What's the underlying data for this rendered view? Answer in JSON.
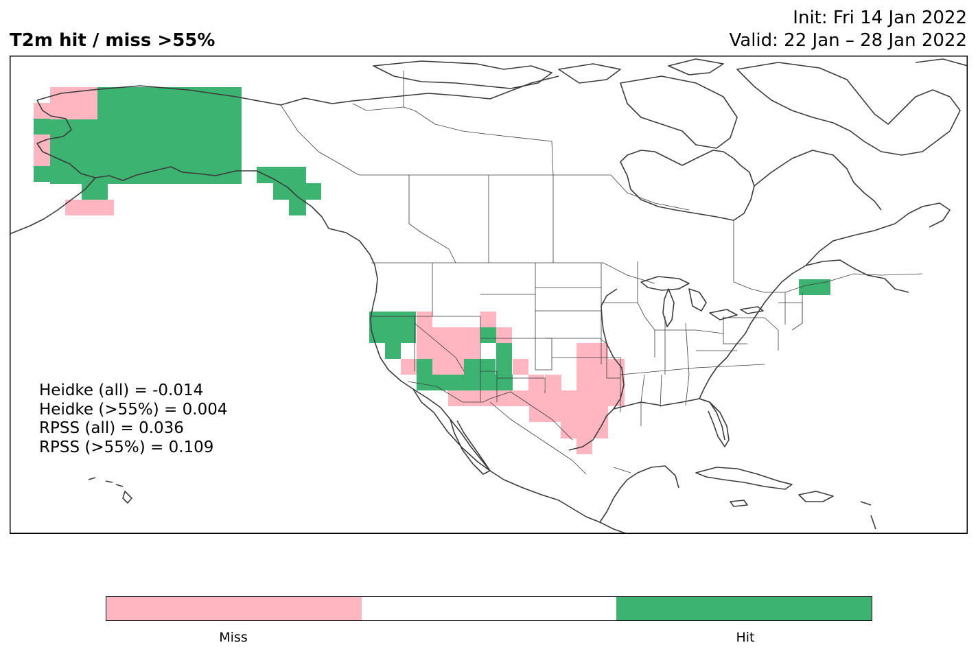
{
  "title": "T2m hit / miss  >55%",
  "init_text": "Init: Fri 14 Jan 2022",
  "valid_text": "Valid: 22 Jan – 28 Jan 2022",
  "colors": {
    "miss": "#ffb6c1",
    "neutral": "#ffffff",
    "hit": "#3cb371",
    "coast": "#3a3a3a",
    "border": "#3a3a3a"
  },
  "stats": [
    "Heidke (all) = -0.014",
    "Heidke (>55%) = 0.004",
    "RPSS (all) = 0.036",
    "RPSS (>55%) = 0.109"
  ],
  "colorbar": {
    "categories": [
      "miss",
      "neutral",
      "hit"
    ],
    "labels": {
      "miss": "Miss",
      "hit": "Hit"
    }
  }
}
